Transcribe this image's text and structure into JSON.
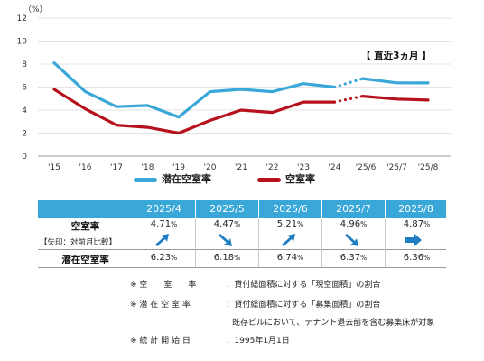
{
  "chart_data": {
    "type": "line",
    "unit_label": "（%）",
    "yticks": [
      "0",
      "2",
      "4",
      "6",
      "8",
      "10",
      "12"
    ],
    "ylim": [
      0,
      12
    ],
    "x_labels": [
      "'15",
      "'16",
      "'17",
      "'18",
      "'19",
      "'20",
      "'21",
      "'22",
      "'23",
      "'24",
      "'25/6",
      "'25/7",
      "'25/8"
    ],
    "annotation": "【 直近3ヵ月 】",
    "series": [
      {
        "name": "潜在空室率",
        "color": "#3aa7d9",
        "solid": [
          [
            0,
            8.1
          ],
          [
            1,
            5.6
          ],
          [
            2,
            4.3
          ],
          [
            3,
            4.4
          ],
          [
            4,
            3.4
          ],
          [
            5,
            5.6
          ],
          [
            6,
            5.8
          ],
          [
            7,
            5.6
          ],
          [
            8,
            6.3
          ],
          [
            9,
            6.0
          ]
        ],
        "dotted": [
          [
            9,
            6.0
          ],
          [
            9.9,
            6.74
          ]
        ],
        "recent": [
          [
            9.9,
            6.74
          ],
          [
            11,
            6.37
          ],
          [
            12,
            6.36
          ]
        ]
      },
      {
        "name": "空室率",
        "color": "#b7111d",
        "solid": [
          [
            0,
            5.8
          ],
          [
            1,
            4.1
          ],
          [
            2,
            2.7
          ],
          [
            3,
            2.5
          ],
          [
            4,
            2.0
          ],
          [
            5,
            3.1
          ],
          [
            6,
            4.0
          ],
          [
            7,
            3.8
          ],
          [
            8,
            4.7
          ],
          [
            9,
            4.7
          ]
        ],
        "dotted": [
          [
            9,
            4.7
          ],
          [
            9.9,
            5.21
          ]
        ],
        "recent": [
          [
            9.9,
            5.21
          ],
          [
            11,
            4.96
          ],
          [
            12,
            4.87
          ]
        ]
      }
    ]
  },
  "table": {
    "months": [
      "2025/4",
      "2025/5",
      "2025/6",
      "2025/7",
      "2025/8"
    ],
    "vacancy_label": "空室率",
    "vacancy_sub": "【矢印：対前月比較】",
    "vacancy": [
      "4.71",
      "4.47",
      "5.21",
      "4.96",
      "4.87"
    ],
    "arrows": [
      "up",
      "down",
      "up",
      "down",
      "right"
    ],
    "latent_label": "潜在空室率",
    "latent": [
      "6.23",
      "6.18",
      "6.74",
      "6.37",
      "6.36"
    ],
    "pct": "%",
    "arrow_color": "#1f7ec2"
  },
  "notes": [
    {
      "mark": "※",
      "label": "空　　室　　率",
      "text": "：貸付総面積に対する「現空面積」の割合"
    },
    {
      "mark": "※",
      "label": "潜 在 空 室 率",
      "text": "：貸付総面積に対する「募集面積」の割合"
    },
    {
      "mark": "",
      "label": "",
      "text": "既存ビルにおいて、テナント退去前を含む募集床が対象"
    },
    {
      "mark": "※",
      "label": "統 計 開 始 日",
      "text": "：1995年1月1日"
    }
  ]
}
